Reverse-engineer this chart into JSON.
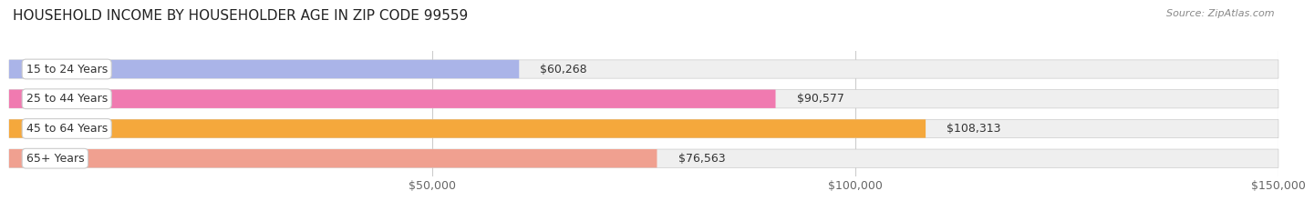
{
  "title": "HOUSEHOLD INCOME BY HOUSEHOLDER AGE IN ZIP CODE 99559",
  "source": "Source: ZipAtlas.com",
  "categories": [
    "15 to 24 Years",
    "25 to 44 Years",
    "45 to 64 Years",
    "65+ Years"
  ],
  "values": [
    60268,
    90577,
    108313,
    76563
  ],
  "labels": [
    "$60,268",
    "$90,577",
    "$108,313",
    "$76,563"
  ],
  "bar_colors": [
    "#aab4e8",
    "#f07ab0",
    "#f5a83c",
    "#f0a090"
  ],
  "bar_bg_color": "#efefef",
  "background_color": "#ffffff",
  "xmin": 0,
  "xmax": 150000,
  "xticks": [
    50000,
    100000,
    150000
  ],
  "xtick_labels": [
    "$50,000",
    "$100,000",
    "$150,000"
  ],
  "title_fontsize": 11,
  "source_fontsize": 8,
  "label_fontsize": 9,
  "tick_fontsize": 9,
  "bar_height": 0.58
}
